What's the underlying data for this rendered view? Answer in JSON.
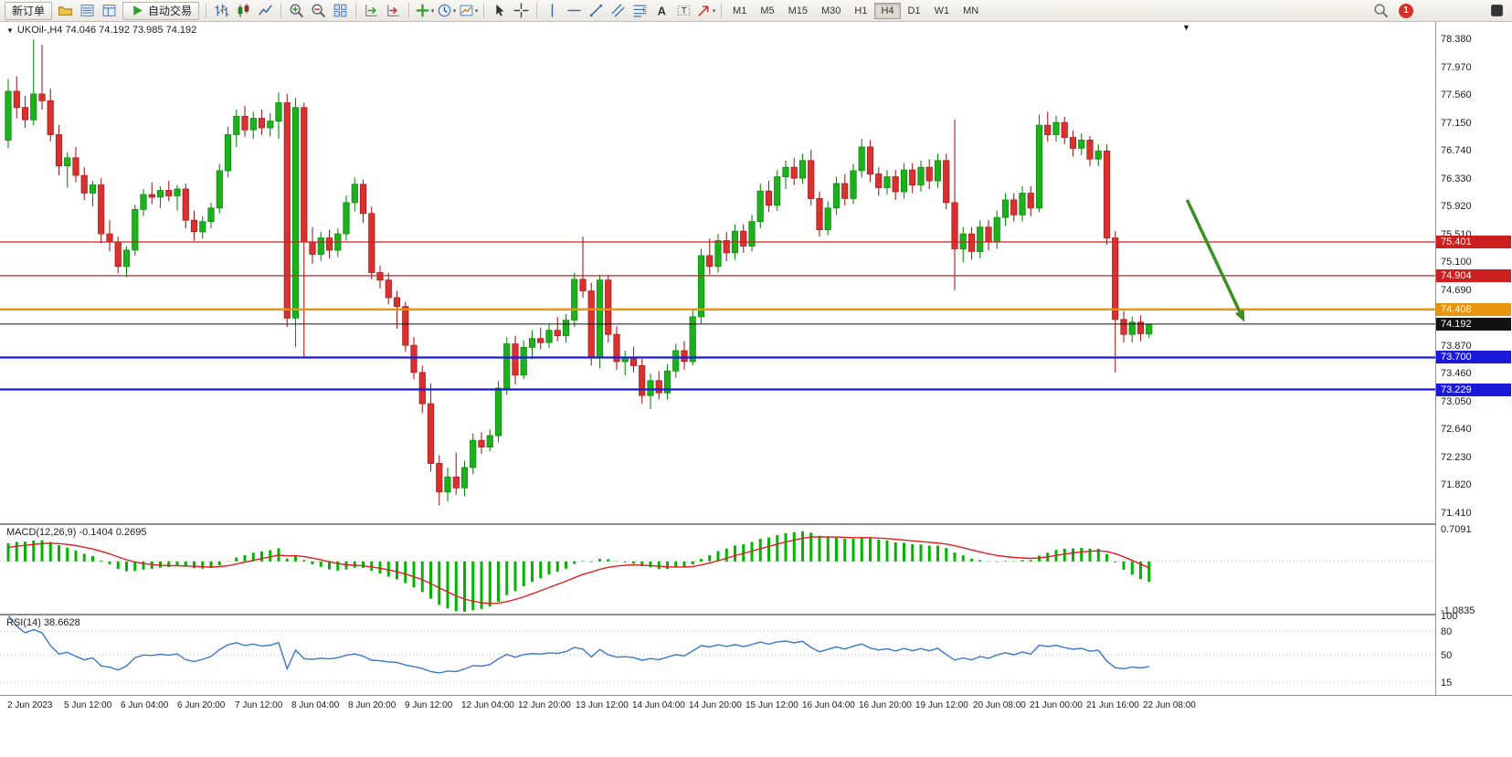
{
  "toolbar": {
    "items": [
      {
        "type": "button",
        "name": "new-order-button",
        "label": "新订单"
      },
      {
        "type": "icon",
        "name": "chart-profile-icon"
      },
      {
        "type": "icon",
        "name": "market-watch-icon"
      },
      {
        "type": "icon",
        "name": "data-window-icon"
      },
      {
        "type": "button",
        "name": "auto-trading-button",
        "label": "自动交易",
        "icon": "play-icon"
      },
      {
        "type": "sep"
      },
      {
        "type": "icon",
        "name": "bar-chart-icon"
      },
      {
        "type": "icon",
        "name": "candlestick-chart-icon"
      },
      {
        "type": "icon",
        "name": "line-chart-icon"
      },
      {
        "type": "sep"
      },
      {
        "type": "icon",
        "name": "zoom-in-icon"
      },
      {
        "type": "icon",
        "name": "zoom-out-icon"
      },
      {
        "type": "icon",
        "name": "tile-windows-icon"
      },
      {
        "type": "sep"
      },
      {
        "type": "icon",
        "name": "auto-scroll-icon"
      },
      {
        "type": "icon",
        "name": "chart-shift-icon"
      },
      {
        "type": "sep"
      },
      {
        "type": "icon",
        "name": "new-chart-icon",
        "caret": true
      },
      {
        "type": "icon",
        "name": "periods-icon",
        "caret": true
      },
      {
        "type": "icon",
        "name": "templates-icon",
        "caret": true
      },
      {
        "type": "sep"
      },
      {
        "type": "icon",
        "name": "cursor-icon"
      },
      {
        "type": "icon",
        "name": "crosshair-icon"
      },
      {
        "type": "sep"
      },
      {
        "type": "icon",
        "name": "vertical-line-icon"
      },
      {
        "type": "icon",
        "name": "horizontal-line-icon"
      },
      {
        "type": "icon",
        "name": "trendline-icon"
      },
      {
        "type": "icon",
        "name": "channel-icon"
      },
      {
        "type": "icon",
        "name": "fibonacci-icon"
      },
      {
        "type": "icon",
        "name": "text-icon"
      },
      {
        "type": "icon",
        "name": "text-label-icon"
      },
      {
        "type": "icon",
        "name": "shapes-icon",
        "caret": true
      },
      {
        "type": "sep"
      }
    ],
    "timeframes": [
      "M1",
      "M5",
      "M15",
      "M30",
      "H1",
      "H4",
      "D1",
      "W1",
      "MN"
    ],
    "active_timeframe": "H4",
    "notification_count": "1"
  },
  "chart": {
    "symbol_ohlc_text": "UKOil-,H4 74.046 74.192 73.985 74.192",
    "macd_label": "MACD(12,26,9) -0.1404 0.2695",
    "rsi_label": "RSI(14) 38.6628",
    "end_marker": "▼",
    "symbol_dropdown": "▼"
  },
  "chart_data": {
    "type": "candlestick",
    "symbol": "UKOil-",
    "timeframe": "H4",
    "title": "UKOil-,H4",
    "last_bar": {
      "open": 74.046,
      "high": 74.192,
      "low": 73.985,
      "close": 74.192
    },
    "colors": {
      "up": "#1db11d",
      "up_edge": "#0e8a0e",
      "down": "#d93030",
      "down_edge": "#aa1d1d",
      "macd_histogram": "#00b400",
      "macd_signal": "#e02020",
      "rsi_line": "#3a78c8",
      "background": "#ffffff",
      "axis_text": "#1c1c1c"
    },
    "price_axis_ticks": [
      "78.380",
      "77.970",
      "77.560",
      "77.150",
      "76.740",
      "76.330",
      "75.920",
      "75.510",
      "75.100",
      "74.690",
      "73.870",
      "73.460",
      "73.050",
      "72.640",
      "72.230",
      "71.820",
      "71.410"
    ],
    "hlines": [
      {
        "price": 75.401,
        "color": "#cc1f1f",
        "width": 1.2,
        "badge": "75.401"
      },
      {
        "price": 74.904,
        "color": "#cc1f1f",
        "width": 1.2,
        "badge": "74.904"
      },
      {
        "price": 74.408,
        "color": "#e8940f",
        "width": 2.4,
        "badge": "74.408"
      },
      {
        "price": 73.7,
        "color": "#1a1ad8",
        "width": 2.2,
        "badge": "73.700"
      },
      {
        "price": 73.229,
        "color": "#1a1ad8",
        "width": 2.2,
        "badge": "73.229"
      }
    ],
    "current_price": {
      "value": 74.192,
      "display": "74.192",
      "color": "#111111"
    },
    "arrow": {
      "x1_bar": 139.5,
      "price1": 76.02,
      "x2_bar": 146.3,
      "price2": 74.22,
      "color": "#3e8e26"
    },
    "time_labels": [
      "2 Jun 2023",
      "5 Jun 12:00",
      "6 Jun 04:00",
      "6 Jun 20:00",
      "7 Jun 12:00",
      "8 Jun 04:00",
      "8 Jun 20:00",
      "9 Jun 12:00",
      "12 Jun 04:00",
      "12 Jun 20:00",
      "13 Jun 12:00",
      "14 Jun 04:00",
      "14 Jun 20:00",
      "15 Jun 12:00",
      "16 Jun 04:00",
      "16 Jun 20:00",
      "19 Jun 12:00",
      "20 Jun 08:00",
      "21 Jun 00:00",
      "21 Jun 16:00",
      "22 Jun 08:00"
    ],
    "indicators": {
      "macd": {
        "label": "MACD(12,26,9)",
        "params": [
          12,
          26,
          9
        ],
        "value_text": "-0.1404 0.2695",
        "axis_labels": [
          {
            "value": 0.7091,
            "text": "0.7091"
          },
          {
            "value": -1.0835,
            "text": "-1.0835"
          }
        ]
      },
      "rsi": {
        "label": "RSI(14)",
        "period": 14,
        "value_text": "38.6628",
        "levels": [
          80,
          50,
          15
        ],
        "axis_labels": [
          {
            "value": 100,
            "text": "100"
          },
          {
            "value": 80,
            "text": "80"
          },
          {
            "value": 50,
            "text": "50"
          },
          {
            "value": 15,
            "text": "15"
          }
        ]
      }
    },
    "ohlc": [
      [
        76.9,
        77.8,
        76.78,
        77.62
      ],
      [
        77.62,
        77.84,
        77.22,
        77.38
      ],
      [
        77.38,
        77.55,
        77.08,
        77.2
      ],
      [
        77.2,
        78.38,
        77.12,
        77.58
      ],
      [
        77.58,
        78.3,
        77.35,
        77.48
      ],
      [
        77.48,
        77.66,
        76.88,
        76.98
      ],
      [
        76.98,
        77.12,
        76.38,
        76.52
      ],
      [
        76.52,
        76.72,
        76.2,
        76.64
      ],
      [
        76.64,
        76.8,
        76.28,
        76.38
      ],
      [
        76.38,
        76.5,
        76.02,
        76.12
      ],
      [
        76.12,
        76.3,
        75.92,
        76.24
      ],
      [
        76.24,
        76.34,
        75.38,
        75.52
      ],
      [
        75.52,
        75.72,
        75.26,
        75.4
      ],
      [
        75.4,
        75.48,
        74.94,
        75.04
      ],
      [
        75.04,
        75.34,
        74.88,
        75.28
      ],
      [
        75.28,
        75.95,
        75.2,
        75.88
      ],
      [
        75.88,
        76.18,
        75.78,
        76.1
      ],
      [
        76.1,
        76.28,
        75.96,
        76.06
      ],
      [
        76.06,
        76.22,
        75.9,
        76.16
      ],
      [
        76.16,
        76.3,
        76.0,
        76.08
      ],
      [
        76.08,
        76.24,
        75.86,
        76.18
      ],
      [
        76.18,
        76.26,
        75.6,
        75.72
      ],
      [
        75.72,
        75.86,
        75.42,
        75.55
      ],
      [
        75.55,
        75.78,
        75.45,
        75.7
      ],
      [
        75.7,
        75.98,
        75.6,
        75.9
      ],
      [
        75.9,
        76.55,
        75.82,
        76.45
      ],
      [
        76.45,
        77.1,
        76.35,
        76.98
      ],
      [
        76.98,
        77.35,
        76.8,
        77.25
      ],
      [
        77.25,
        77.4,
        76.95,
        77.05
      ],
      [
        77.05,
        77.32,
        76.92,
        77.22
      ],
      [
        77.22,
        77.35,
        76.98,
        77.08
      ],
      [
        77.08,
        77.3,
        76.95,
        77.18
      ],
      [
        77.18,
        77.6,
        76.92,
        77.45
      ],
      [
        77.45,
        77.58,
        74.15,
        74.28
      ],
      [
        74.28,
        77.52,
        73.85,
        77.38
      ],
      [
        77.38,
        77.45,
        73.7,
        75.4
      ],
      [
        75.4,
        75.62,
        75.08,
        75.22
      ],
      [
        75.22,
        75.55,
        75.12,
        75.46
      ],
      [
        75.46,
        75.58,
        75.16,
        75.28
      ],
      [
        75.28,
        75.6,
        75.18,
        75.52
      ],
      [
        75.52,
        76.08,
        75.42,
        75.98
      ],
      [
        75.98,
        76.35,
        75.85,
        76.25
      ],
      [
        76.25,
        76.32,
        75.68,
        75.82
      ],
      [
        75.82,
        75.92,
        74.85,
        74.95
      ],
      [
        74.95,
        75.05,
        74.72,
        74.84
      ],
      [
        74.84,
        74.95,
        74.48,
        74.58
      ],
      [
        74.58,
        74.68,
        74.12,
        74.45
      ],
      [
        74.45,
        74.52,
        73.78,
        73.88
      ],
      [
        73.88,
        74.0,
        73.38,
        73.48
      ],
      [
        73.48,
        73.58,
        72.88,
        73.02
      ],
      [
        73.02,
        73.32,
        72.02,
        72.14
      ],
      [
        72.14,
        72.26,
        71.52,
        71.72
      ],
      [
        71.72,
        72.08,
        71.58,
        71.94
      ],
      [
        71.94,
        72.3,
        71.68,
        71.78
      ],
      [
        71.78,
        72.18,
        71.66,
        72.08
      ],
      [
        72.08,
        72.58,
        71.98,
        72.48
      ],
      [
        72.48,
        72.6,
        72.28,
        72.38
      ],
      [
        72.38,
        72.64,
        72.32,
        72.55
      ],
      [
        72.55,
        73.35,
        72.45,
        73.25
      ],
      [
        73.25,
        74.0,
        73.15,
        73.9
      ],
      [
        73.9,
        74.02,
        73.3,
        73.44
      ],
      [
        73.44,
        73.95,
        73.38,
        73.85
      ],
      [
        73.85,
        74.1,
        73.68,
        73.98
      ],
      [
        73.98,
        74.14,
        73.82,
        73.92
      ],
      [
        73.92,
        74.2,
        73.84,
        74.1
      ],
      [
        74.1,
        74.3,
        73.94,
        74.02
      ],
      [
        74.02,
        74.34,
        73.92,
        74.25
      ],
      [
        74.25,
        74.95,
        74.15,
        74.85
      ],
      [
        74.85,
        75.48,
        74.58,
        74.68
      ],
      [
        74.68,
        74.8,
        73.58,
        73.7
      ],
      [
        73.7,
        74.92,
        73.54,
        74.84
      ],
      [
        74.84,
        74.9,
        73.92,
        74.04
      ],
      [
        74.04,
        74.16,
        73.52,
        73.64
      ],
      [
        73.64,
        73.8,
        73.44,
        73.7
      ],
      [
        73.7,
        73.86,
        73.48,
        73.58
      ],
      [
        73.58,
        73.68,
        73.02,
        73.14
      ],
      [
        73.14,
        73.46,
        72.94,
        73.36
      ],
      [
        73.36,
        73.5,
        73.08,
        73.18
      ],
      [
        73.18,
        73.6,
        73.08,
        73.5
      ],
      [
        73.5,
        73.9,
        73.4,
        73.8
      ],
      [
        73.8,
        73.94,
        73.52,
        73.64
      ],
      [
        73.64,
        74.4,
        73.58,
        74.3
      ],
      [
        74.3,
        75.3,
        74.2,
        75.2
      ],
      [
        75.2,
        75.45,
        74.92,
        75.04
      ],
      [
        75.04,
        75.52,
        74.95,
        75.42
      ],
      [
        75.42,
        75.55,
        75.12,
        75.24
      ],
      [
        75.24,
        75.66,
        75.14,
        75.56
      ],
      [
        75.56,
        75.66,
        75.24,
        75.34
      ],
      [
        75.34,
        75.8,
        75.26,
        75.7
      ],
      [
        75.7,
        76.26,
        75.6,
        76.15
      ],
      [
        76.15,
        76.3,
        75.84,
        75.94
      ],
      [
        75.94,
        76.46,
        75.86,
        76.36
      ],
      [
        76.36,
        76.6,
        76.18,
        76.5
      ],
      [
        76.5,
        76.64,
        76.24,
        76.34
      ],
      [
        76.34,
        76.7,
        76.26,
        76.6
      ],
      [
        76.6,
        76.76,
        75.94,
        76.04
      ],
      [
        76.04,
        76.14,
        75.48,
        75.58
      ],
      [
        75.58,
        76.0,
        75.5,
        75.9
      ],
      [
        75.9,
        76.36,
        75.8,
        76.26
      ],
      [
        76.26,
        76.4,
        75.94,
        76.04
      ],
      [
        76.04,
        76.55,
        75.96,
        76.45
      ],
      [
        76.45,
        76.92,
        76.35,
        76.8
      ],
      [
        76.8,
        76.9,
        76.28,
        76.4
      ],
      [
        76.4,
        76.5,
        76.08,
        76.2
      ],
      [
        76.2,
        76.46,
        76.1,
        76.36
      ],
      [
        76.36,
        76.46,
        76.02,
        76.14
      ],
      [
        76.14,
        76.56,
        76.04,
        76.46
      ],
      [
        76.46,
        76.56,
        76.12,
        76.24
      ],
      [
        76.24,
        76.6,
        76.14,
        76.5
      ],
      [
        76.5,
        76.62,
        76.18,
        76.3
      ],
      [
        76.3,
        76.7,
        76.2,
        76.6
      ],
      [
        76.6,
        76.7,
        75.88,
        75.98
      ],
      [
        75.98,
        77.2,
        74.69,
        75.3
      ],
      [
        75.3,
        75.62,
        75.1,
        75.52
      ],
      [
        75.52,
        75.62,
        75.14,
        75.26
      ],
      [
        75.26,
        75.72,
        75.16,
        75.62
      ],
      [
        75.62,
        75.72,
        75.28,
        75.4
      ],
      [
        75.4,
        75.86,
        75.3,
        75.76
      ],
      [
        75.76,
        76.12,
        75.64,
        76.02
      ],
      [
        76.02,
        76.12,
        75.7,
        75.8
      ],
      [
        75.8,
        76.22,
        75.7,
        76.12
      ],
      [
        76.12,
        76.22,
        75.78,
        75.9
      ],
      [
        75.9,
        77.28,
        75.84,
        77.12
      ],
      [
        77.12,
        77.32,
        76.88,
        76.98
      ],
      [
        76.98,
        77.26,
        76.88,
        77.16
      ],
      [
        77.16,
        77.24,
        76.84,
        76.94
      ],
      [
        76.94,
        77.04,
        76.66,
        76.78
      ],
      [
        76.78,
        77.0,
        76.68,
        76.9
      ],
      [
        76.9,
        76.96,
        76.52,
        76.62
      ],
      [
        76.62,
        76.84,
        76.52,
        76.74
      ],
      [
        76.74,
        76.84,
        75.36,
        75.46
      ],
      [
        75.46,
        75.56,
        73.48,
        74.26
      ],
      [
        74.26,
        74.38,
        73.92,
        74.04
      ],
      [
        74.04,
        74.3,
        73.92,
        74.22
      ],
      [
        74.22,
        74.32,
        73.94,
        74.05
      ],
      [
        74.046,
        74.192,
        73.985,
        74.192
      ]
    ]
  }
}
